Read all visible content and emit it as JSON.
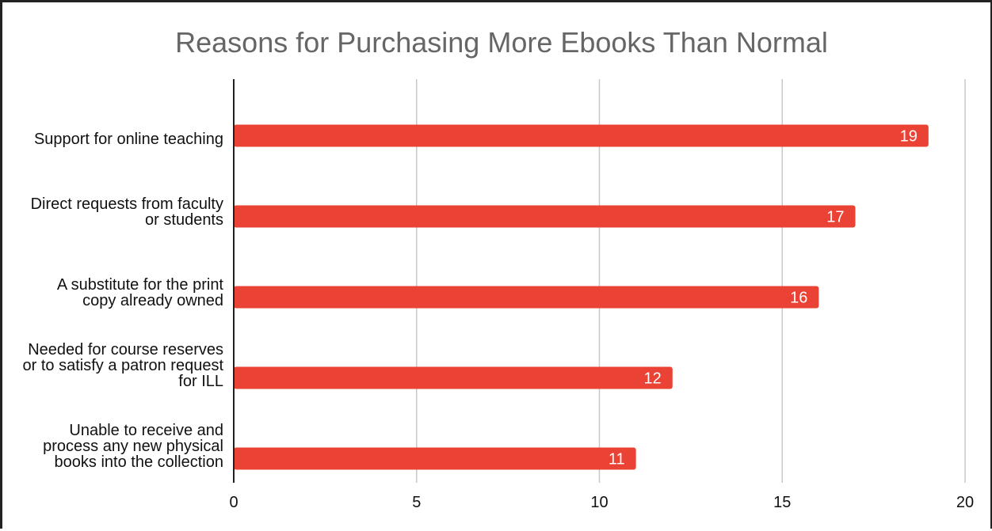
{
  "chart_data": {
    "type": "bar",
    "orientation": "horizontal",
    "title": "Reasons for Purchasing More Ebooks Than Normal",
    "categories": [
      "Support for online teaching",
      "Direct requests from faculty or students",
      "A substitute for the print copy already owned",
      "Needed for course reserves or to satisfy a patron request for ILL",
      "Unable to receive and process any new physical books into the collection"
    ],
    "values": [
      19,
      17,
      16,
      12,
      11
    ],
    "xlim": [
      0,
      20
    ],
    "xticks": [
      "0",
      "5",
      "10",
      "15",
      "20"
    ],
    "grid": true,
    "bar_color": "#ea4335",
    "data_labels": [
      "19",
      "17",
      "16",
      "12",
      "11"
    ]
  }
}
